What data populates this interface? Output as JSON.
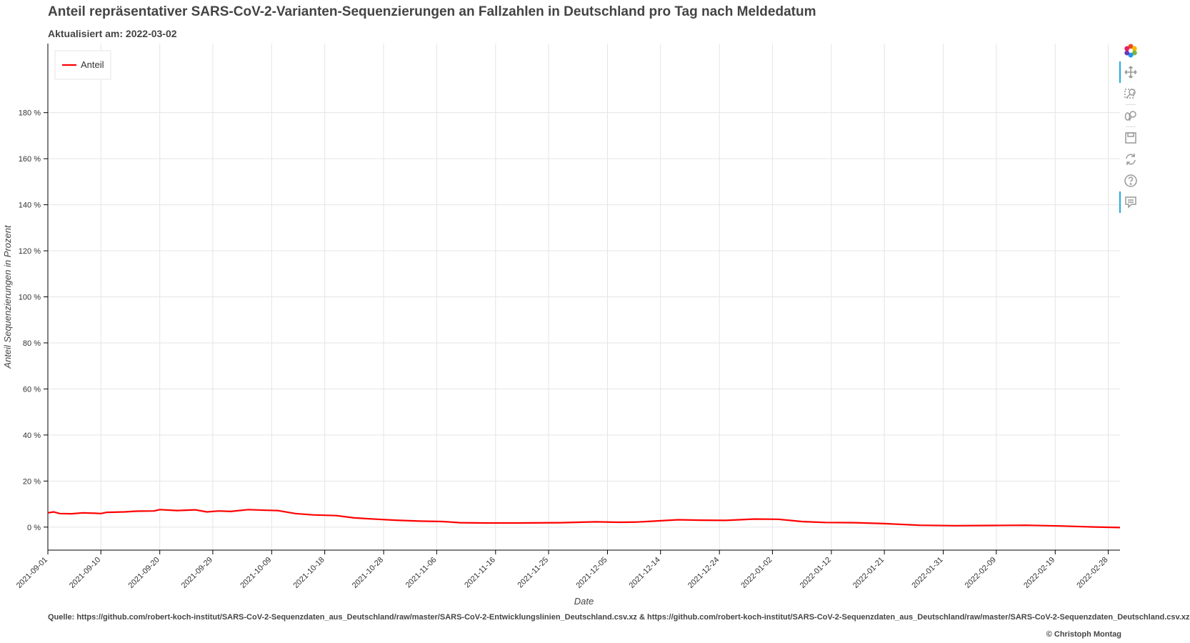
{
  "header": {
    "title": "Anteil repräsentativer SARS-CoV-2-Varianten-Sequenzierungen an Fallzahlen in Deutschland pro Tag nach Meldedatum",
    "subtitle": "Aktualisiert am: 2022-03-02"
  },
  "footer": {
    "source": "Quelle: https://github.com/robert-koch-institut/SARS-CoV-2-Sequenzdaten_aus_Deutschland/raw/master/SARS-CoV-2-Entwicklungslinien_Deutschland.csv.xz & https://github.com/robert-koch-institut/SARS-CoV-2-Sequenzdaten_aus_Deutschland/raw/master/SARS-CoV-2-Sequenzdaten_Deutschland.csv.xz",
    "copyright": "© Christoph Montag"
  },
  "toolbar": {
    "tools": [
      {
        "name": "bokeh-logo-icon",
        "active": false
      },
      {
        "name": "pan-icon",
        "active": true
      },
      {
        "name": "box-zoom-icon",
        "active": false
      },
      {
        "name": "wheel-zoom-icon",
        "active": false
      },
      {
        "name": "save-icon",
        "active": false
      },
      {
        "name": "reset-icon",
        "active": false
      },
      {
        "name": "help-icon",
        "active": false
      },
      {
        "name": "hover-icon",
        "active": true
      }
    ]
  },
  "colors": {
    "line": "#ff0000",
    "grid": "#e5e5e5",
    "axis": "#000000"
  },
  "chart_data": {
    "type": "line",
    "title": "Anteil repräsentativer SARS-CoV-2-Varianten-Sequenzierungen an Fallzahlen in Deutschland pro Tag nach Meldedatum",
    "xlabel": "Date",
    "ylabel": "Anteil Sequenzierungen in Prozent",
    "x_range": [
      "2021-09-01",
      "2022-03-02"
    ],
    "ylim": [
      -10,
      210
    ],
    "yticks": [
      0,
      20,
      40,
      60,
      80,
      100,
      120,
      140,
      160,
      180
    ],
    "ytick_labels": [
      "0 %",
      "20 %",
      "40 %",
      "60 %",
      "80 %",
      "100 %",
      "120 %",
      "140 %",
      "160 %",
      "180 %"
    ],
    "xticks": [
      "2021-09-01",
      "2021-09-10",
      "2021-09-20",
      "2021-09-29",
      "2021-10-09",
      "2021-10-18",
      "2021-10-28",
      "2021-11-06",
      "2021-11-16",
      "2021-11-25",
      "2021-12-05",
      "2021-12-14",
      "2021-12-24",
      "2022-01-02",
      "2022-01-12",
      "2022-01-21",
      "2022-01-31",
      "2022-02-09",
      "2022-02-19",
      "2022-02-28"
    ],
    "grid": true,
    "legend_position": "top-left",
    "series": [
      {
        "name": "Anteil",
        "color": "#ff0000",
        "points": [
          [
            "2021-09-01",
            6.2
          ],
          [
            "2021-09-02",
            6.6
          ],
          [
            "2021-09-03",
            5.9
          ],
          [
            "2021-09-05",
            5.8
          ],
          [
            "2021-09-07",
            6.2
          ],
          [
            "2021-09-09",
            6.0
          ],
          [
            "2021-09-10",
            5.9
          ],
          [
            "2021-09-11",
            6.4
          ],
          [
            "2021-09-14",
            6.6
          ],
          [
            "2021-09-16",
            6.9
          ],
          [
            "2021-09-19",
            7.0
          ],
          [
            "2021-09-20",
            7.6
          ],
          [
            "2021-09-23",
            7.2
          ],
          [
            "2021-09-26",
            7.5
          ],
          [
            "2021-09-28",
            6.6
          ],
          [
            "2021-09-30",
            7.0
          ],
          [
            "2021-10-02",
            6.8
          ],
          [
            "2021-10-05",
            7.6
          ],
          [
            "2021-10-08",
            7.3
          ],
          [
            "2021-10-10",
            7.2
          ],
          [
            "2021-10-13",
            5.9
          ],
          [
            "2021-10-16",
            5.3
          ],
          [
            "2021-10-20",
            5.0
          ],
          [
            "2021-10-23",
            4.0
          ],
          [
            "2021-10-27",
            3.4
          ],
          [
            "2021-10-30",
            3.0
          ],
          [
            "2021-11-03",
            2.6
          ],
          [
            "2021-11-07",
            2.4
          ],
          [
            "2021-11-10",
            1.9
          ],
          [
            "2021-11-14",
            1.8
          ],
          [
            "2021-11-20",
            1.8
          ],
          [
            "2021-11-27",
            1.9
          ],
          [
            "2021-12-03",
            2.3
          ],
          [
            "2021-12-07",
            2.1
          ],
          [
            "2021-12-10",
            2.2
          ],
          [
            "2021-12-13",
            2.6
          ],
          [
            "2021-12-17",
            3.2
          ],
          [
            "2021-12-21",
            3.0
          ],
          [
            "2021-12-25",
            2.9
          ],
          [
            "2021-12-30",
            3.5
          ],
          [
            "2022-01-03",
            3.4
          ],
          [
            "2022-01-07",
            2.4
          ],
          [
            "2022-01-11",
            2.0
          ],
          [
            "2022-01-16",
            1.9
          ],
          [
            "2022-01-21",
            1.5
          ],
          [
            "2022-01-27",
            0.8
          ],
          [
            "2022-02-02",
            0.6
          ],
          [
            "2022-02-08",
            0.7
          ],
          [
            "2022-02-14",
            0.8
          ],
          [
            "2022-02-20",
            0.5
          ],
          [
            "2022-02-25",
            0.1
          ],
          [
            "2022-03-02",
            -0.2
          ]
        ]
      }
    ]
  }
}
